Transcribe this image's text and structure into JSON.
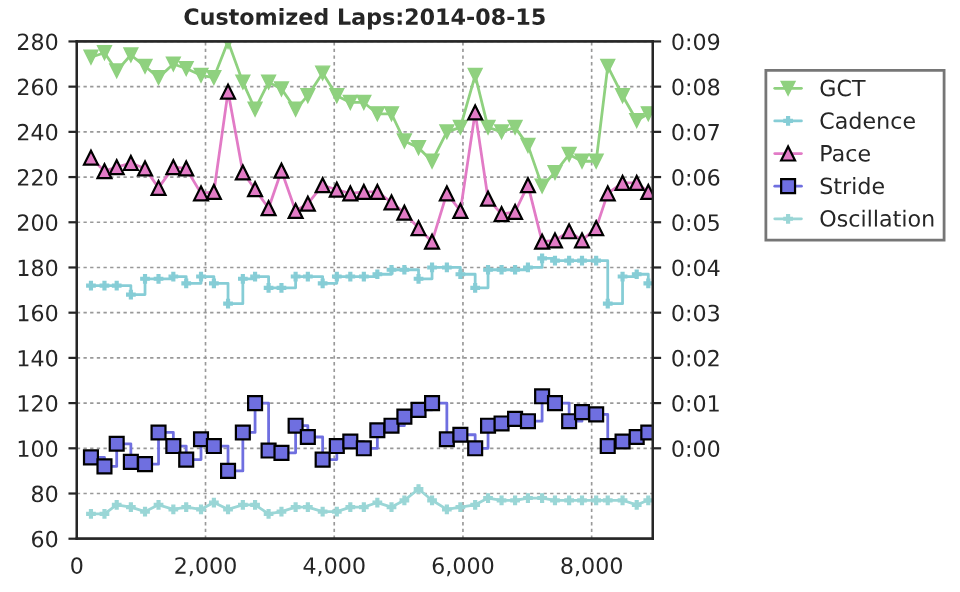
{
  "chart_data": {
    "type": "line",
    "title": "Customized Laps:2014-08-15",
    "x": [
      220,
      430,
      620,
      840,
      1060,
      1270,
      1500,
      1700,
      1930,
      2130,
      2350,
      2580,
      2770,
      2980,
      3180,
      3400,
      3590,
      3820,
      4040,
      4250,
      4460,
      4670,
      4890,
      5090,
      5310,
      5520,
      5750,
      5960,
      6190,
      6390,
      6600,
      6810,
      7010,
      7230,
      7430,
      7650,
      7850,
      8070,
      8250,
      8480,
      8700,
      8880
    ],
    "series": [
      {
        "name": "GCT",
        "color": "#8fd17f",
        "marker": "triangle_down",
        "values": [
          273,
          275,
          267,
          274,
          269,
          264,
          270,
          268,
          265,
          264,
          280,
          262,
          250,
          262,
          259,
          250,
          256,
          266,
          256,
          253,
          253,
          248,
          248,
          236,
          233,
          227,
          240,
          242,
          265,
          242,
          240,
          242,
          234,
          216,
          222,
          230,
          227,
          227,
          269,
          256,
          245,
          248
        ]
      },
      {
        "name": "Cadence",
        "type": "step",
        "color": "#86cdd6",
        "marker": "cross",
        "values": [
          172,
          172,
          172,
          168,
          175,
          175,
          176,
          173,
          176,
          173,
          164,
          175,
          176,
          171,
          171,
          176,
          176,
          173,
          176,
          176,
          176,
          177,
          179,
          179,
          175,
          180,
          180,
          177,
          171,
          179,
          179,
          179,
          180,
          184,
          183,
          183,
          183,
          183,
          164,
          176,
          177,
          173
        ]
      },
      {
        "name": "Pace",
        "axis": "y2",
        "color": "#e27bc6",
        "marker": "triangle",
        "values": [
          6.43,
          6.13,
          6.22,
          6.31,
          6.19,
          5.76,
          6.22,
          6.19,
          5.64,
          5.67,
          7.89,
          6.1,
          5.73,
          5.31,
          6.14,
          5.25,
          5.41,
          5.82,
          5.72,
          5.64,
          5.67,
          5.67,
          5.44,
          5.21,
          4.87,
          4.57,
          5.64,
          5.25,
          7.43,
          5.52,
          5.18,
          5.23,
          5.82,
          4.57,
          4.6,
          4.8,
          4.6,
          4.87,
          5.64,
          5.87,
          5.87,
          5.67
        ]
      },
      {
        "name": "Stride",
        "type": "step",
        "color": "#6f6fe0",
        "marker": "square",
        "values": [
          96,
          92,
          102,
          94,
          93,
          107,
          101,
          95,
          104,
          101,
          90,
          107,
          120,
          99,
          98,
          110,
          105,
          95,
          101,
          103,
          100,
          108,
          110,
          114,
          117,
          120,
          104,
          106,
          100,
          110,
          111,
          113,
          112,
          123,
          120,
          112,
          116,
          115,
          101,
          103,
          105,
          107
        ]
      },
      {
        "name": "Oscillation",
        "color": "#9ad6d6",
        "marker": "cross",
        "values": [
          71,
          71,
          75,
          74,
          72,
          75,
          73,
          74,
          73,
          76,
          73,
          75,
          75,
          71,
          72,
          74,
          74,
          72,
          72,
          74,
          74,
          76,
          74,
          77,
          82,
          77,
          73,
          74,
          75,
          78,
          77,
          77,
          78,
          78,
          77,
          77,
          77,
          77,
          77,
          77,
          75,
          77
        ]
      }
    ],
    "xlim": [
      0,
      8950
    ],
    "xticks": [
      0,
      {
        "value": 2000,
        "label": "2,000"
      },
      {
        "value": 4000,
        "label": "4,000"
      },
      {
        "value": 6000,
        "label": "6,000"
      },
      {
        "value": 8000,
        "label": "8,000"
      }
    ],
    "ylim": [
      60,
      280
    ],
    "yticks": [
      60,
      80,
      100,
      120,
      140,
      160,
      180,
      200,
      220,
      240,
      260,
      280
    ],
    "y2lim": [
      -2,
      9
    ],
    "y2ticks": [
      {
        "value": 0,
        "label": "0:00"
      },
      {
        "value": 1,
        "label": "0:01"
      },
      {
        "value": 2,
        "label": "0:02"
      },
      {
        "value": 3,
        "label": "0:03"
      },
      {
        "value": 4,
        "label": "0:04"
      },
      {
        "value": 5,
        "label": "0:05"
      },
      {
        "value": 6,
        "label": "0:06"
      },
      {
        "value": 7,
        "label": "0:07"
      },
      {
        "value": 8,
        "label": "0:08"
      },
      {
        "value": 9,
        "label": "0:09"
      }
    ],
    "grid": true,
    "legend": "top right"
  }
}
